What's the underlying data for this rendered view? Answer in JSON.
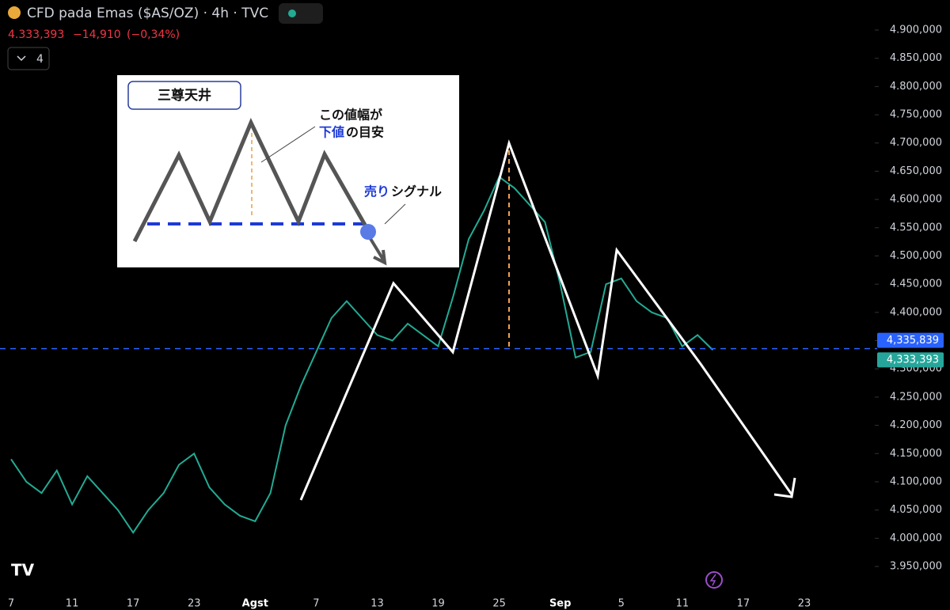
{
  "chart_data": {
    "type": "line",
    "title": "CFD pada Emas ($AS/OZ) · 4h · TVC",
    "last_price": "4.333,393",
    "change": "−14,910",
    "change_pct": "(−0,34%)",
    "indicator_count": "4",
    "categories": [
      "7",
      null,
      null,
      null,
      "11",
      null,
      null,
      null,
      "17",
      null,
      null,
      null,
      "23",
      null,
      null,
      null,
      "Agst",
      null,
      null,
      null,
      "7",
      null,
      null,
      null,
      "13",
      null,
      null,
      null,
      "19",
      null,
      null,
      null,
      "25",
      null,
      null,
      null,
      "Sep",
      null,
      null,
      null,
      "5",
      null,
      null,
      null,
      "11",
      null,
      null,
      null,
      "17",
      null,
      null,
      null,
      "23"
    ],
    "series": [
      {
        "name": "CFD pada Emas",
        "color": "#22ab94",
        "values": [
          4140000,
          4100000,
          4080000,
          4120000,
          4060000,
          4110000,
          4080000,
          4050000,
          4010000,
          4050000,
          4080000,
          4130000,
          4150000,
          4090000,
          4060000,
          4040000,
          4030000,
          4080000,
          4200000,
          4270000,
          4330000,
          4390000,
          4420000,
          4390000,
          4360000,
          4350000,
          4380000,
          4360000,
          4340000,
          4430000,
          4530000,
          4580000,
          4640000,
          4620000,
          4590000,
          4560000,
          4450000,
          4320000,
          4330000,
          4450000,
          4460000,
          4420000,
          4400000,
          4390000,
          4340000,
          4360000,
          4333393,
          null,
          null,
          null,
          null,
          null,
          null
        ]
      }
    ],
    "ylim": [
      3950000,
      4900000
    ],
    "yticks": [
      {
        "value": 3950000,
        "label": "3.950,000"
      },
      {
        "value": 4000000,
        "label": "4.000,000"
      },
      {
        "value": 4050000,
        "label": "4.050,000"
      },
      {
        "value": 4100000,
        "label": "4.100,000"
      },
      {
        "value": 4150000,
        "label": "4.150,000"
      },
      {
        "value": 4200000,
        "label": "4.200,000"
      },
      {
        "value": 4250000,
        "label": "4.250,000"
      },
      {
        "value": 4300000,
        "label": "4.300,000"
      },
      {
        "value": 4350000,
        "label": "4.350,000"
      },
      {
        "value": 4400000,
        "label": "4.400,000"
      },
      {
        "value": 4450000,
        "label": "4.450,000"
      },
      {
        "value": 4500000,
        "label": "4.500,000"
      },
      {
        "value": 4550000,
        "label": "4.550,000"
      },
      {
        "value": 4600000,
        "label": "4.600,000"
      },
      {
        "value": 4650000,
        "label": "4.650,000"
      },
      {
        "value": 4700000,
        "label": "4.700,000"
      },
      {
        "value": 4750000,
        "label": "4.750,000"
      },
      {
        "value": 4800000,
        "label": "4.800,000"
      },
      {
        "value": 4850000,
        "label": "4.850,000"
      },
      {
        "value": 4900000,
        "label": "4.900,000"
      }
    ],
    "price_labels": [
      {
        "value": 4335839,
        "label": "4,335,839",
        "color": "#2962ff"
      },
      {
        "value": 4333393,
        "label": "4,333,393",
        "color": "#26a69a"
      }
    ],
    "inset": {
      "title": "三尊天井",
      "note_line1": "この値幅が",
      "note_blue": "下値",
      "note_rest": "の目安",
      "signal_blue": "売り",
      "signal_rest": "シグナル"
    }
  }
}
